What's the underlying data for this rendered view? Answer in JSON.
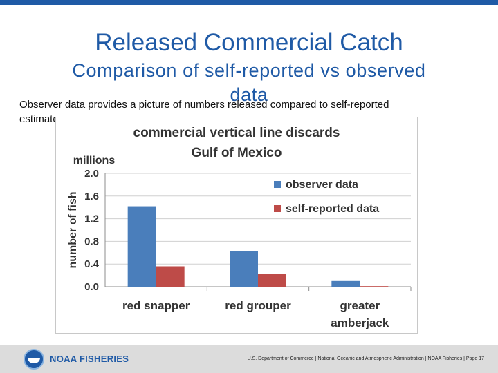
{
  "slide": {
    "title": "Released Commercial Catch",
    "subtitle": "Comparison of self-reported vs observed",
    "subtitle_2": "data",
    "body_line_1": "Observer data provides a picture of numbers released compared to self-reported",
    "body_line_2": "estimates"
  },
  "footer": {
    "logo_text": "NOAA FISHERIES",
    "text": "U.S. Department of Commerce | National Oceanic and Atmospheric Administration | NOAA Fisheries | Page 17"
  },
  "chart_data": {
    "type": "bar",
    "title_line_1": "commercial vertical line discards",
    "title_line_2": "Gulf of Mexico",
    "unit_label": "millions",
    "ylabel": "number of fish",
    "categories": [
      [
        "red snapper"
      ],
      [
        "red grouper"
      ],
      [
        "greater",
        "amberjack"
      ]
    ],
    "series": [
      {
        "name": "observer data",
        "color": "#4a7ebb",
        "values": [
          1.42,
          0.63,
          0.1
        ]
      },
      {
        "name": "self-reported data",
        "color": "#be4b48",
        "values": [
          0.36,
          0.23,
          0.01
        ]
      }
    ],
    "ylim": [
      0,
      2.0
    ],
    "yticks": [
      "0.0",
      "0.4",
      "0.8",
      "1.2",
      "1.6",
      "2.0"
    ],
    "grid": true,
    "legend": "right"
  }
}
